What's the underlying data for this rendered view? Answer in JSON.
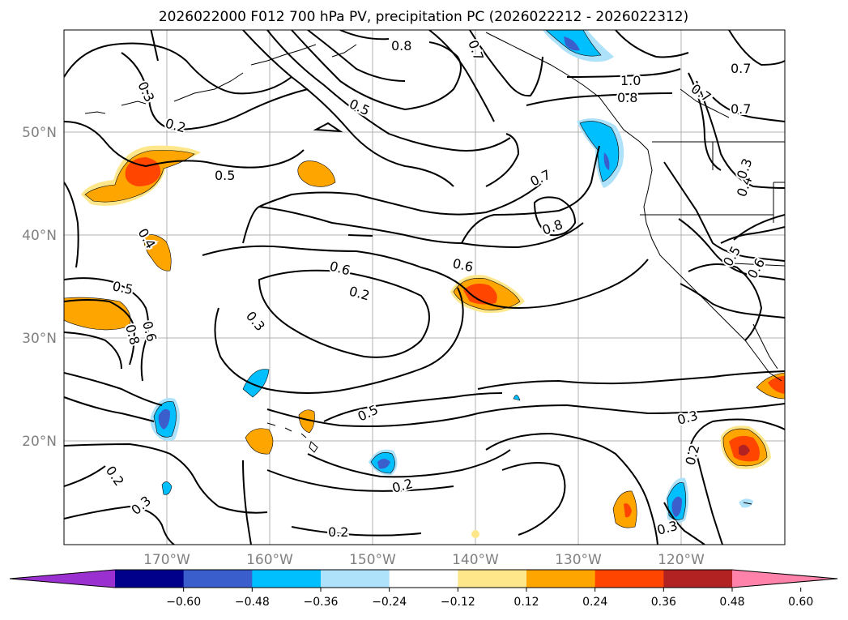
{
  "title": "2026022000 F012 700 hPa PV, precipitation PC (2026022212 - 2026022312)",
  "map": {
    "lat_labels": [
      "50°N",
      "40°N",
      "30°N",
      "20°N"
    ],
    "lon_labels": [
      "170°W",
      "160°W",
      "150°W",
      "140°W",
      "130°W",
      "120°W"
    ],
    "label_color": "#808080"
  },
  "contour_labels": [
    "0.8",
    "0.7",
    "0.3",
    "0.2",
    "0.5",
    "1.0",
    "0.8",
    "0.7",
    "0.7",
    "0.7",
    "0.5",
    "0.4",
    "0.3",
    "0.7",
    "0.8",
    "0.4",
    "0.6",
    "0.2",
    "0.3",
    "0.5",
    "0.6",
    "0.8",
    "0.6",
    "0.5",
    "0.6",
    "0.5",
    "0.3",
    "0.2",
    "0.2",
    "0.3",
    "0.2",
    "0.3",
    "0.2"
  ],
  "colorbar": {
    "tick_labels": [
      "−0.60",
      "−0.48",
      "−0.36",
      "−0.24",
      "−0.12",
      "0.12",
      "0.24",
      "0.36",
      "0.48",
      "0.60"
    ],
    "colors": [
      "#9b30d0",
      "#00008b",
      "#3a5fcd",
      "#00bfff",
      "#aee1fa",
      "#ffffff",
      "#fde78a",
      "#ffa500",
      "#ff4500",
      "#b22222",
      "#ff82ab"
    ]
  }
}
